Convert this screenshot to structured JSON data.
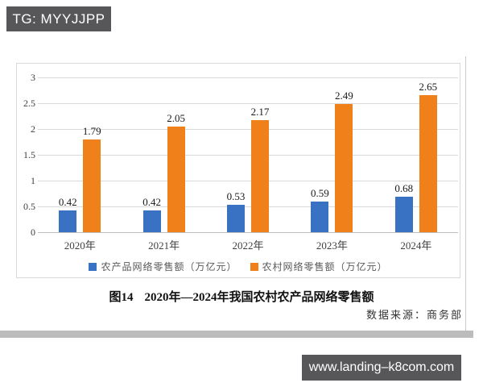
{
  "overlays": {
    "tg_badge": "TG: MYYJJPP",
    "url_badge": "www.landing–k8com.com"
  },
  "chart_data": {
    "type": "bar",
    "categories": [
      "2020年",
      "2021年",
      "2022年",
      "2023年",
      "2024年"
    ],
    "series": [
      {
        "name": "农产品网络零售额（万亿元）",
        "color": "#3a72c3",
        "values": [
          0.42,
          0.42,
          0.53,
          0.59,
          0.68
        ]
      },
      {
        "name": "农村网络零售额（万亿元）",
        "color": "#f0801a",
        "values": [
          1.79,
          2.05,
          2.17,
          2.49,
          2.65
        ]
      }
    ],
    "ylim": [
      0,
      3
    ],
    "yticks": [
      0,
      0.5,
      1,
      1.5,
      2,
      2.5,
      3
    ],
    "grid": true,
    "legend_position": "bottom",
    "value_labels": true
  },
  "caption": {
    "figure_label": "图14",
    "title": "2020年—2024年我国农村农产品网络零售额"
  },
  "source": "数据来源：商务部"
}
